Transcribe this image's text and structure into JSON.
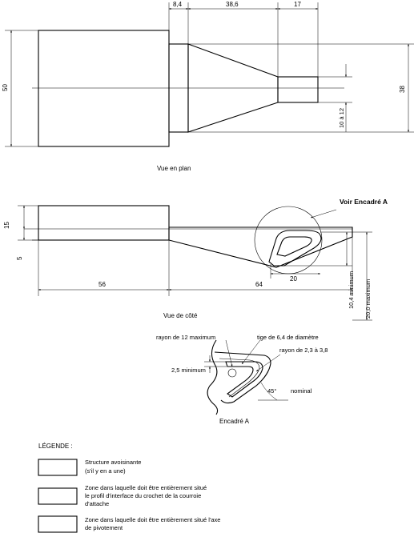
{
  "plan_view": {
    "caption": "Vue en plan",
    "dim_top_1": "8,4",
    "dim_top_2": "38,6",
    "dim_top_3": "17",
    "dim_left": "50",
    "dim_right": "38",
    "dim_inner": "10 à 12"
  },
  "side_view": {
    "caption": "Vue de côté",
    "detail_callout": "Voir Encadré A",
    "dim_15": "15",
    "dim_5": "5",
    "dim_56": "56",
    "dim_64": "64",
    "dim_20": "20",
    "dim_min": "10,4 minimum",
    "dim_max": "20,0 maximum"
  },
  "detail": {
    "caption": "Encadré A",
    "radius_max": "rayon de 12 maximum",
    "rod": "tige de 6,4 de diamètre",
    "radius_range": "rayon de 2,3 à 3,8",
    "min_25": "2,5 minimum",
    "angle": "45°",
    "nominal": "nominal"
  },
  "legend": {
    "title": "LÉGENDE :",
    "items": [
      {
        "line1": "Structure avoisinante",
        "line2": "(s'il y en a une)",
        "line3": "",
        "pattern": "hatch-wide"
      },
      {
        "line1": "Zone dans laquelle doit être entièrement situé",
        "line2": "le profil d'interface du crochet de la courroie",
        "line3": "d'attache",
        "pattern": "crosshatch"
      },
      {
        "line1": "Zone dans laquelle doit être entièrement situé l'axe",
        "line2": "de pivotement",
        "line3": "",
        "pattern": "hatch-narrow"
      }
    ]
  }
}
